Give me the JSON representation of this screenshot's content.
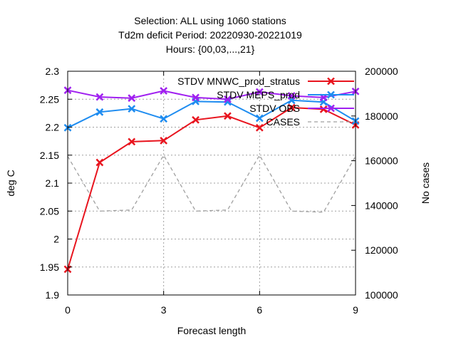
{
  "chart_data": {
    "type": "line",
    "title_lines": [
      "Selection: ALL using  1060 stations",
      "Td2m deficit   Period: 20220930-20221019",
      "Hours: {00,03,...,21}"
    ],
    "xlabel": "Forecast length",
    "ylabel": "deg C",
    "y2label": "No cases",
    "xlim": [
      0,
      9
    ],
    "ylim": [
      1.9,
      2.3
    ],
    "y2lim": [
      100000,
      200000
    ],
    "x_ticks": [
      0,
      3,
      6,
      9
    ],
    "y_ticks": [
      "1.9",
      "1.95",
      "2",
      "2.05",
      "2.1",
      "2.15",
      "2.2",
      "2.25",
      "2.3"
    ],
    "y_tick_values": [
      1.9,
      1.95,
      2.0,
      2.05,
      2.1,
      2.15,
      2.2,
      2.25,
      2.3
    ],
    "y2_ticks": [
      "100000",
      "120000",
      "140000",
      "160000",
      "180000",
      "200000"
    ],
    "y2_tick_values": [
      100000,
      120000,
      140000,
      160000,
      180000,
      200000
    ],
    "grid": true,
    "legend_position": "top-right",
    "x": [
      0,
      1,
      2,
      3,
      4,
      5,
      6,
      7,
      8,
      9
    ],
    "series": [
      {
        "name": "STDV MNWC_prod_stratus",
        "axis": "y",
        "color": "#e8141e",
        "marker": "x",
        "values": [
          1.946,
          2.137,
          2.174,
          2.176,
          2.213,
          2.22,
          2.199,
          2.235,
          2.232,
          2.204
        ]
      },
      {
        "name": "STDV MEPS_prod",
        "axis": "y",
        "color": "#1e8cf0",
        "marker": "x",
        "values": [
          2.199,
          2.227,
          2.233,
          2.215,
          2.246,
          2.245,
          2.216,
          2.248,
          2.245,
          2.211
        ]
      },
      {
        "name": "STDV OBS",
        "axis": "y",
        "color": "#a020f0",
        "marker": "x",
        "values": [
          2.266,
          2.254,
          2.252,
          2.265,
          2.253,
          2.25,
          2.263,
          2.256,
          2.253,
          2.264
        ]
      },
      {
        "name": "CASES",
        "axis": "y2",
        "color": "#a0a0a0",
        "dashed": true,
        "values": [
          162000,
          137500,
          138000,
          162500,
          137500,
          138000,
          162500,
          137500,
          137000,
          162000
        ]
      }
    ]
  }
}
